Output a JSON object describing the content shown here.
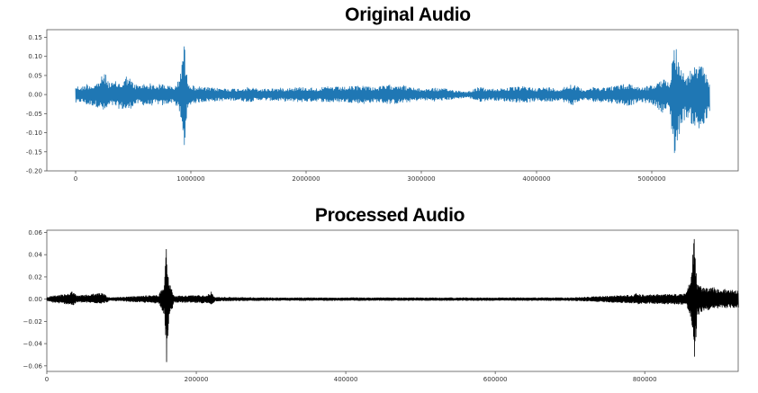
{
  "chart_data": [
    {
      "type": "line",
      "title": "Original Audio",
      "xlabel": "",
      "ylabel": "",
      "xlim": [
        -250000,
        5750000
      ],
      "ylim": [
        -0.2,
        0.17
      ],
      "xticks": [
        0,
        1000000,
        2000000,
        3000000,
        4000000,
        5000000
      ],
      "xtick_labels": [
        "0",
        "1000000",
        "2000000",
        "3000000",
        "4000000",
        "5000000"
      ],
      "yticks": [
        0.15,
        0.1,
        0.05,
        0.0,
        -0.05,
        -0.1,
        -0.15,
        -0.2
      ],
      "ytick_labels": [
        "0.15",
        "0.10",
        "0.05",
        "0.00",
        "-0.05",
        "-0.10",
        "-0.15",
        "-0.20"
      ],
      "color": "#1f77b4",
      "grid": false,
      "series": [
        {
          "x": [
            0,
            50000,
            100000,
            150000,
            200000,
            250000,
            300000,
            350000,
            400000,
            450000,
            500000,
            550000,
            600000,
            650000,
            700000,
            750000,
            800000,
            850000,
            900000,
            940000,
            960000,
            1000000,
            1100000,
            1200000,
            1300000,
            1400000,
            1500000,
            1600000,
            1700000,
            1800000,
            1900000,
            2000000,
            2100000,
            2200000,
            2300000,
            2400000,
            2500000,
            2600000,
            2700000,
            2800000,
            2900000,
            3000000,
            3100000,
            3200000,
            3300000,
            3400000,
            3500000,
            3600000,
            3700000,
            3800000,
            3900000,
            4000000,
            4100000,
            4200000,
            4300000,
            4400000,
            4500000,
            4600000,
            4700000,
            4800000,
            4900000,
            5000000,
            5100000,
            5150000,
            5200000,
            5250000,
            5300000,
            5350000,
            5400000,
            5450000,
            5500000
          ],
          "envelope_upper": [
            0.025,
            0.02,
            0.03,
            0.025,
            0.035,
            0.06,
            0.03,
            0.035,
            0.03,
            0.055,
            0.03,
            0.025,
            0.03,
            0.03,
            0.025,
            0.03,
            0.025,
            0.02,
            0.04,
            0.155,
            0.06,
            0.025,
            0.02,
            0.018,
            0.017,
            0.016,
            0.02,
            0.015,
            0.017,
            0.018,
            0.02,
            0.02,
            0.018,
            0.022,
            0.02,
            0.022,
            0.025,
            0.02,
            0.025,
            0.03,
            0.02,
            0.015,
            0.018,
            0.016,
            0.012,
            0.008,
            0.02,
            0.015,
            0.018,
            0.02,
            0.022,
            0.018,
            0.02,
            0.015,
            0.03,
            0.015,
            0.02,
            0.02,
            0.025,
            0.03,
            0.02,
            0.025,
            0.04,
            0.035,
            0.15,
            0.07,
            0.05,
            0.07,
            0.08,
            0.07,
            0.04
          ],
          "envelope_lower": [
            -0.025,
            -0.02,
            -0.03,
            -0.03,
            -0.035,
            -0.05,
            -0.03,
            -0.035,
            -0.04,
            -0.045,
            -0.03,
            -0.025,
            -0.03,
            -0.03,
            -0.025,
            -0.03,
            -0.025,
            -0.02,
            -0.05,
            -0.16,
            -0.06,
            -0.025,
            -0.02,
            -0.018,
            -0.017,
            -0.016,
            -0.02,
            -0.015,
            -0.017,
            -0.018,
            -0.02,
            -0.02,
            -0.018,
            -0.022,
            -0.02,
            -0.022,
            -0.025,
            -0.02,
            -0.025,
            -0.025,
            -0.02,
            -0.015,
            -0.018,
            -0.016,
            -0.012,
            -0.008,
            -0.02,
            -0.015,
            -0.018,
            -0.02,
            -0.022,
            -0.018,
            -0.02,
            -0.015,
            -0.03,
            -0.015,
            -0.02,
            -0.02,
            -0.025,
            -0.03,
            -0.02,
            -0.025,
            -0.05,
            -0.04,
            -0.18,
            -0.08,
            -0.06,
            -0.08,
            -0.1,
            -0.09,
            -0.05
          ]
        }
      ]
    },
    {
      "type": "line",
      "title": "Processed Audio",
      "xlabel": "",
      "ylabel": "",
      "xlim": [
        0,
        925000
      ],
      "ylim": [
        -0.065,
        0.062
      ],
      "xticks": [
        0,
        200000,
        400000,
        600000,
        800000
      ],
      "xtick_labels": [
        "0",
        "200000",
        "400000",
        "600000",
        "800000"
      ],
      "yticks": [
        0.06,
        0.04,
        0.02,
        0.0,
        -0.02,
        -0.04,
        -0.06
      ],
      "ytick_labels": [
        "0.06",
        "0.04",
        "0.02",
        "0.00",
        "−0.02",
        "−0.04",
        "−0.06"
      ],
      "color": "#000000",
      "grid": false,
      "series": [
        {
          "x": [
            0,
            5000,
            30000,
            35000,
            40000,
            75000,
            80000,
            85000,
            150000,
            157000,
            160000,
            163000,
            170000,
            215000,
            220000,
            225000,
            300000,
            400000,
            500000,
            600000,
            700000,
            785000,
            790000,
            795000,
            855000,
            862000,
            866000,
            870000,
            880000,
            890000,
            900000,
            910000,
            920000,
            925000
          ],
          "envelope_upper": [
            0.0015,
            0.003,
            0.005,
            0.008,
            0.003,
            0.006,
            0.003,
            0.0015,
            0.004,
            0.015,
            0.048,
            0.02,
            0.003,
            0.004,
            0.007,
            0.002,
            0.0015,
            0.0015,
            0.0015,
            0.0015,
            0.0015,
            0.004,
            0.006,
            0.004,
            0.005,
            0.02,
            0.057,
            0.015,
            0.01,
            0.012,
            0.008,
            0.01,
            0.008,
            0.008
          ],
          "envelope_lower": [
            -0.0015,
            -0.003,
            -0.005,
            -0.006,
            -0.003,
            -0.004,
            -0.003,
            -0.0015,
            -0.004,
            -0.015,
            -0.06,
            -0.02,
            -0.003,
            -0.004,
            -0.005,
            -0.002,
            -0.0015,
            -0.0015,
            -0.0015,
            -0.0015,
            -0.0015,
            -0.004,
            -0.005,
            -0.004,
            -0.005,
            -0.02,
            -0.06,
            -0.015,
            -0.01,
            -0.01,
            -0.008,
            -0.008,
            -0.008,
            -0.008
          ]
        }
      ]
    }
  ]
}
